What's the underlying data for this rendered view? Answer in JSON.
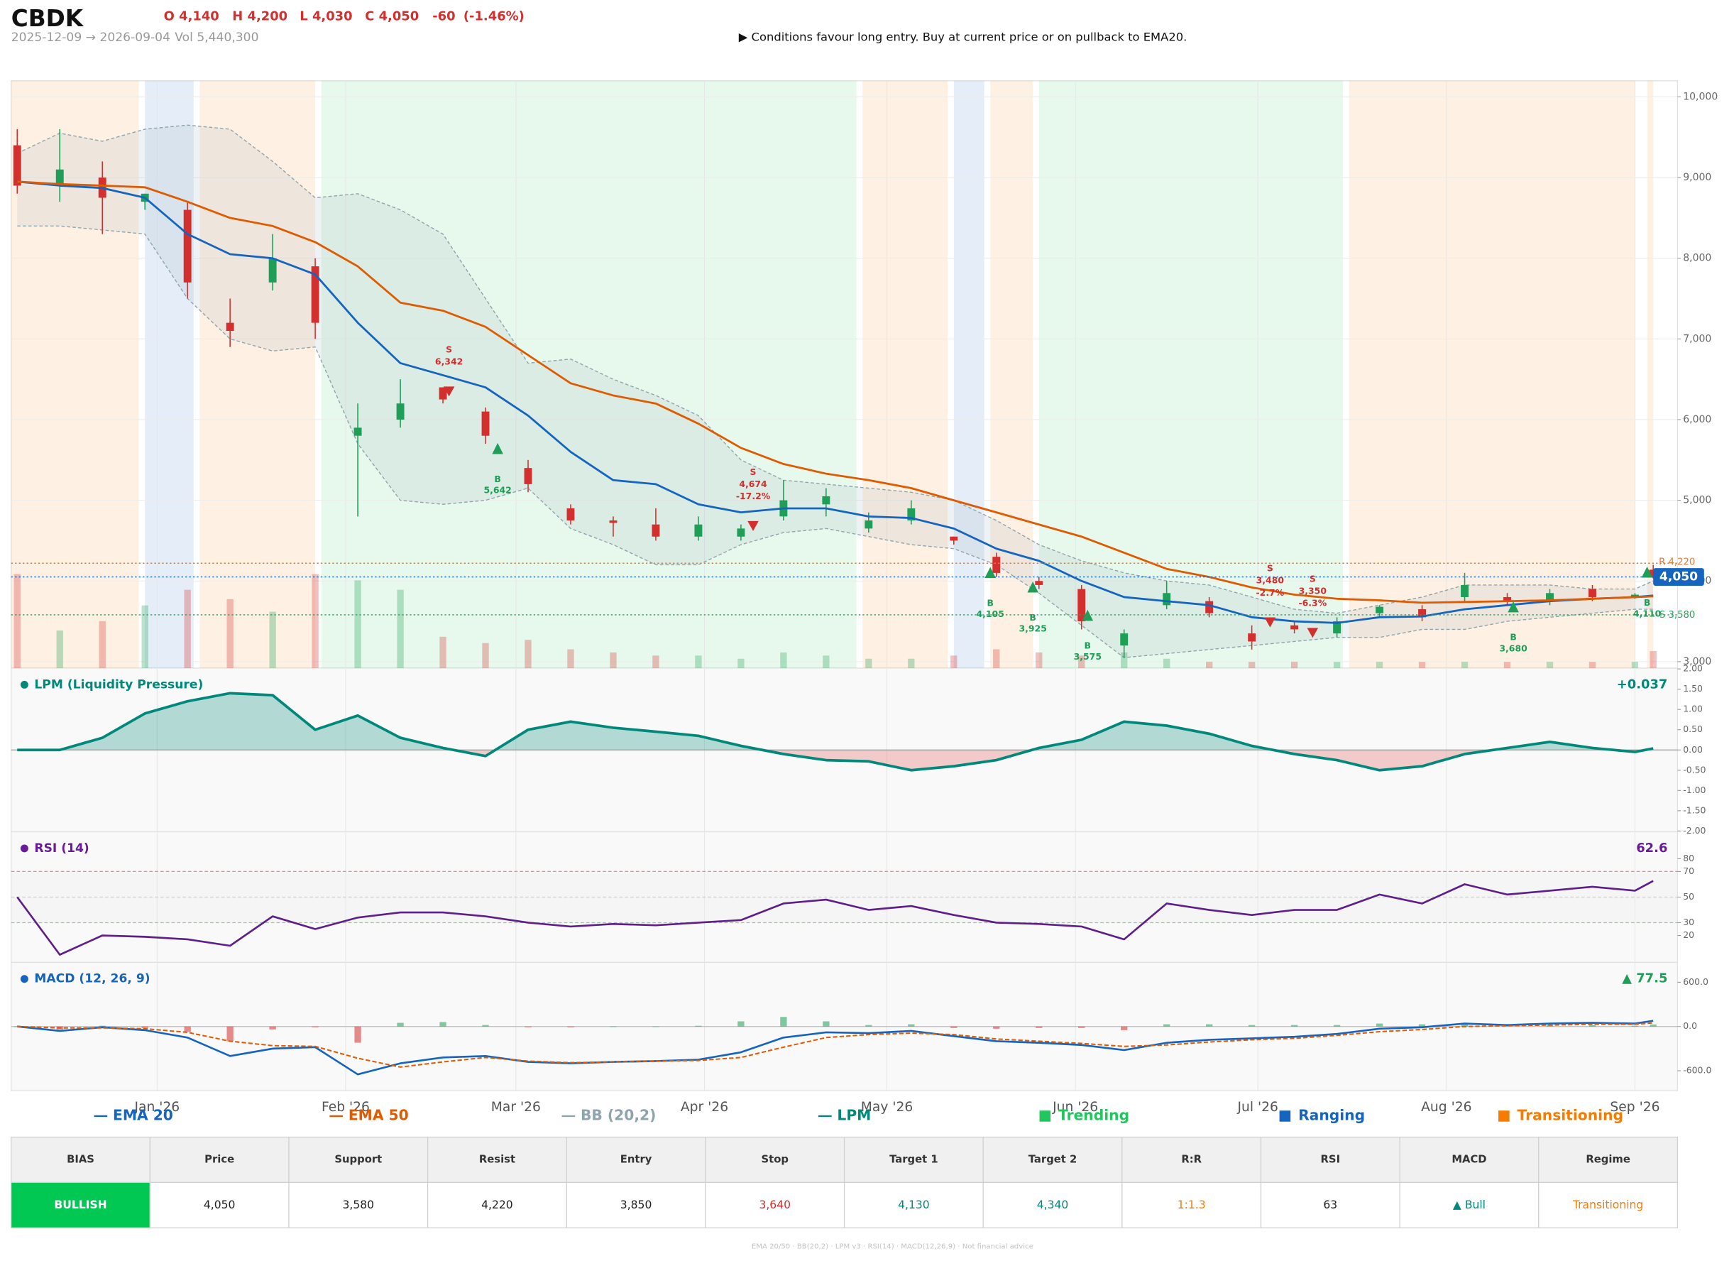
{
  "header": {
    "ticker": "CBDK",
    "ohlc": [
      "O 4,140",
      "H 4,200",
      "L 4,030",
      "C 4,050"
    ],
    "change": "-60",
    "change_pct": "(-1.46%)",
    "range": "2025-12-09 → 2026-09-04",
    "volume": "Vol 5,440,300",
    "message": "▶  Conditions favour long entry. Buy at current price or on pullback to EMA20."
  },
  "chart_data": [
    {
      "type": "candlestick",
      "x": [
        "2025-12-09",
        "2025-12-16",
        "2025-12-23",
        "2025-12-30",
        "2026-01-06",
        "2026-01-13",
        "2026-01-20",
        "2026-01-27",
        "2026-02-03",
        "2026-02-10",
        "2026-02-17",
        "2026-02-24",
        "2026-03-03",
        "2026-03-10",
        "2026-03-17",
        "2026-03-24",
        "2026-03-31",
        "2026-04-07",
        "2026-04-14",
        "2026-04-21",
        "2026-04-28",
        "2026-05-05",
        "2026-05-12",
        "2026-05-19",
        "2026-05-26",
        "2026-06-02",
        "2026-06-09",
        "2026-06-16",
        "2026-06-23",
        "2026-06-30",
        "2026-07-07",
        "2026-07-14",
        "2026-07-21",
        "2026-07-28",
        "2026-08-04",
        "2026-08-11",
        "2026-08-18",
        "2026-08-25",
        "2026-09-01",
        "2026-09-04"
      ],
      "open": [
        9400,
        8900,
        9000,
        8700,
        8600,
        7200,
        7700,
        7900,
        5800,
        6000,
        6400,
        6100,
        5400,
        4900,
        4750,
        4700,
        4550,
        4550,
        4800,
        4950,
        4650,
        4750,
        4550,
        4300,
        4000,
        3900,
        3200,
        3700,
        3750,
        3350,
        3450,
        3350,
        3600,
        3650,
        3800,
        3800,
        3750,
        3900,
        3800,
        4140
      ],
      "high": [
        9600,
        9600,
        9200,
        8800,
        8700,
        7500,
        8300,
        8000,
        6200,
        6500,
        6400,
        6150,
        5500,
        4950,
        4800,
        4900,
        4800,
        4700,
        5250,
        5150,
        4850,
        5000,
        4550,
        4350,
        4050,
        3950,
        3400,
        4000,
        3800,
        3450,
        3500,
        3550,
        3700,
        3700,
        4100,
        3850,
        3900,
        3950,
        3850,
        4200
      ],
      "low": [
        8800,
        8700,
        8300,
        8600,
        7500,
        6900,
        7600,
        7000,
        4800,
        5900,
        6200,
        5700,
        5100,
        4700,
        4550,
        4500,
        4500,
        4500,
        4750,
        4800,
        4600,
        4700,
        4450,
        4050,
        3900,
        3400,
        3050,
        3650,
        3550,
        3150,
        3350,
        3300,
        3550,
        3500,
        3750,
        3700,
        3700,
        3750,
        3780,
        4030
      ],
      "close": [
        8900,
        9100,
        8750,
        8800,
        7700,
        7100,
        8000,
        7200,
        5900,
        6200,
        6250,
        5800,
        5200,
        4750,
        4720,
        4550,
        4700,
        4650,
        5000,
        5050,
        4750,
        4900,
        4500,
        4100,
        3950,
        3500,
        3350,
        3850,
        3600,
        3250,
        3400,
        3500,
        3680,
        3550,
        3950,
        3740,
        3850,
        3800,
        3830,
        4050
      ],
      "volume": [
        30000000,
        12000000,
        15000000,
        20000000,
        25000000,
        22000000,
        18000000,
        30000000,
        28000000,
        25000000,
        10000000,
        8000000,
        9000000,
        6000000,
        5000000,
        4000000,
        4000000,
        3000000,
        5000000,
        4000000,
        3000000,
        3000000,
        4000000,
        6000000,
        5000000,
        4000000,
        5000000,
        3000000,
        2000000,
        2000000,
        2000000,
        2000000,
        2000000,
        2000000,
        2000000,
        2000000,
        2000000,
        2000000,
        2000000,
        5440300
      ],
      "up_color": "#1e9e57",
      "down_color": "#d32f2f",
      "series": [
        {
          "name": "EMA 20",
          "color": "#1565c0",
          "values": [
            8950,
            8900,
            8870,
            8750,
            8300,
            8050,
            8000,
            7800,
            7200,
            6700,
            6550,
            6400,
            6050,
            5600,
            5250,
            5200,
            4950,
            4850,
            4900,
            4900,
            4800,
            4780,
            4650,
            4400,
            4250,
            4000,
            3800,
            3750,
            3700,
            3550,
            3500,
            3480,
            3550,
            3560,
            3650,
            3700,
            3750,
            3780,
            3800,
            3820
          ]
        },
        {
          "name": "EMA 50",
          "color": "#e05a00",
          "values": [
            8950,
            8920,
            8900,
            8880,
            8700,
            8500,
            8400,
            8200,
            7900,
            7450,
            7350,
            7150,
            6800,
            6450,
            6300,
            6200,
            5950,
            5650,
            5450,
            5330,
            5250,
            5150,
            5000,
            4850,
            4700,
            4550,
            4350,
            4150,
            4050,
            3920,
            3830,
            3780,
            3760,
            3730,
            3740,
            3750,
            3760,
            3780,
            3800,
            3810
          ]
        }
      ],
      "bands": [
        {
          "name": "BB (20,2)",
          "color": "#90a4ae",
          "upper": [
            9300,
            9550,
            9450,
            9600,
            9650,
            9600,
            9200,
            8750,
            8800,
            8600,
            8300,
            7500,
            6700,
            6750,
            6500,
            6300,
            6050,
            5500,
            5250,
            5200,
            5150,
            5100,
            5000,
            4750,
            4450,
            4250,
            4100,
            4000,
            3950,
            3800,
            3650,
            3600,
            3700,
            3800,
            3950,
            3950,
            3950,
            3900,
            3900,
            4000
          ],
          "lower": [
            8400,
            8400,
            8350,
            8300,
            7500,
            7000,
            6850,
            6900,
            5700,
            5000,
            4950,
            5000,
            5150,
            4650,
            4450,
            4200,
            4200,
            4450,
            4600,
            4650,
            4550,
            4450,
            4400,
            4200,
            3850,
            3450,
            3050,
            3100,
            3150,
            3200,
            3250,
            3300,
            3300,
            3400,
            3400,
            3500,
            3550,
            3600,
            3650,
            3650
          ]
        }
      ],
      "regime_types": [
        {
          "name": "Trending",
          "color": "#22c55e"
        },
        {
          "name": "Ranging",
          "color": "#1565c0"
        },
        {
          "name": "Transitioning",
          "color": "#f57c00"
        }
      ],
      "regimes": [
        {
          "start": "2025-12-08",
          "end": "2025-12-29",
          "regime": 2
        },
        {
          "start": "2025-12-30",
          "end": "2026-01-07",
          "regime": 1
        },
        {
          "start": "2026-01-08",
          "end": "2026-01-27",
          "regime": 2
        },
        {
          "start": "2026-01-28",
          "end": "2026-04-26",
          "regime": 0
        },
        {
          "start": "2026-04-27",
          "end": "2026-05-11",
          "regime": 2
        },
        {
          "start": "2026-05-12",
          "end": "2026-05-17",
          "regime": 1
        },
        {
          "start": "2026-05-18",
          "end": "2026-05-25",
          "regime": 2
        },
        {
          "start": "2026-05-26",
          "end": "2026-07-15",
          "regime": 0
        },
        {
          "start": "2026-07-16",
          "end": "2026-09-01",
          "regime": 2
        },
        {
          "start": "2026-09-03",
          "end": "2026-09-04",
          "regime": 2
        }
      ],
      "signals": [
        {
          "x": "2026-02-18",
          "side": "S",
          "value": 6342,
          "label": "6,342"
        },
        {
          "x": "2026-02-26",
          "side": "B",
          "value": 5642,
          "label": "5,642"
        },
        {
          "x": "2026-04-09",
          "side": "S",
          "value": 4674,
          "label": "4,674",
          "change": "-17.2%"
        },
        {
          "x": "2026-05-18",
          "side": "B",
          "value": 4105,
          "label": "4,105"
        },
        {
          "x": "2026-05-25",
          "side": "B",
          "value": 3925,
          "label": "3,925"
        },
        {
          "x": "2026-06-03",
          "side": "B",
          "value": 3575,
          "label": "3,575"
        },
        {
          "x": "2026-07-03",
          "side": "S",
          "value": 3480,
          "label": "3,480",
          "change": "-2.7%"
        },
        {
          "x": "2026-07-10",
          "side": "S",
          "value": 3350,
          "label": "3,350",
          "change": "-6.3%"
        },
        {
          "x": "2026-08-12",
          "side": "B",
          "value": 3680,
          "label": "3,680"
        },
        {
          "x": "2026-09-03",
          "side": "B",
          "value": 4110,
          "label": "4,110"
        }
      ],
      "levels": [
        {
          "kind": "resistance",
          "value": 4220,
          "label": "R 4,220",
          "color": "#e07b39"
        },
        {
          "kind": "support",
          "value": 3580,
          "label": "S 3,580",
          "color": "#2e9e5b"
        },
        {
          "kind": "price",
          "value": 4050,
          "label": "4,050",
          "color": "#1565c0"
        }
      ],
      "xlim": [
        "2025-12-08",
        "2026-09-08"
      ],
      "xticks": [
        {
          "value": "2026-01-01",
          "label": "Jan '26"
        },
        {
          "value": "2026-02-01",
          "label": "Feb '26"
        },
        {
          "value": "2026-03-01",
          "label": "Mar '26"
        },
        {
          "value": "2026-04-01",
          "label": "Apr '26"
        },
        {
          "value": "2026-05-01",
          "label": "May '26"
        },
        {
          "value": "2026-06-01",
          "label": "Jun '26"
        },
        {
          "value": "2026-07-01",
          "label": "Jul '26"
        },
        {
          "value": "2026-08-01",
          "label": "Aug '26"
        },
        {
          "value": "2026-09-01",
          "label": "Sep '26"
        }
      ],
      "ylim": [
        2920,
        10200
      ],
      "yticks": [
        {
          "value": 3000,
          "label": "3,000"
        },
        {
          "value": 4000,
          "label": "4,000"
        },
        {
          "value": 5000,
          "label": "5,000"
        },
        {
          "value": 6000,
          "label": "6,000"
        },
        {
          "value": 7000,
          "label": "7,000"
        },
        {
          "value": 8000,
          "label": "8,000"
        },
        {
          "value": 9000,
          "label": "9,000"
        },
        {
          "value": 10000,
          "label": "10,000"
        }
      ],
      "grid": true
    },
    {
      "type": "area",
      "title": "LPM (Liquidity Pressure)",
      "series": [
        {
          "name": "LPM",
          "color": "#00897b",
          "negative_color": "#e57373",
          "values": [
            0,
            0,
            0.3,
            0.9,
            1.2,
            1.4,
            1.35,
            0.5,
            0.85,
            0.3,
            0.05,
            -0.15,
            0.5,
            0.7,
            0.55,
            0.45,
            0.35,
            0.1,
            -0.1,
            -0.25,
            -0.28,
            -0.5,
            -0.4,
            -0.25,
            0.05,
            0.25,
            0.7,
            0.6,
            0.4,
            0.1,
            -0.1,
            -0.25,
            -0.5,
            -0.4,
            -0.1,
            0.05,
            0.2,
            0.05,
            -0.05,
            0.037
          ]
        }
      ],
      "last_label": "+0.037",
      "ylim": [
        -2.02,
        2.02
      ],
      "yticks": [
        {
          "value": 2,
          "label": "2.00"
        },
        {
          "value": 1.5,
          "label": "1.50"
        },
        {
          "value": 1,
          "label": "1.00"
        },
        {
          "value": 0.5,
          "label": "0.50"
        },
        {
          "value": 0,
          "label": "0.00"
        },
        {
          "value": -0.5,
          "label": "-0.50"
        },
        {
          "value": -1,
          "label": "-1.00"
        },
        {
          "value": -1.5,
          "label": "-1.50"
        },
        {
          "value": -2,
          "label": "-2.00"
        }
      ]
    },
    {
      "type": "line",
      "title": "RSI (14)",
      "series": [
        {
          "color": "#5e1f8a",
          "values": [
            50,
            5,
            20,
            19,
            17,
            12,
            35,
            25,
            34,
            38,
            38,
            35,
            30,
            27,
            29,
            28,
            30,
            32,
            45,
            48,
            40,
            43,
            36,
            30,
            29,
            27,
            17,
            45,
            40,
            36,
            40,
            40,
            52,
            45,
            60,
            52,
            55,
            58,
            55,
            62.6
          ]
        }
      ],
      "last_label": "62.6",
      "reference_lines": [
        {
          "value": 70,
          "color": "#e57373"
        },
        {
          "value": 50,
          "color": "#bdbdbd"
        },
        {
          "value": 30,
          "color": "#81c784"
        }
      ],
      "ylim": [
        -1,
        101
      ],
      "yticks": [
        20,
        30,
        50,
        70,
        80
      ]
    },
    {
      "type": "macd",
      "title": "MACD (12, 26, 9)",
      "series": [
        {
          "color": "#1565c0",
          "values": [
            0,
            -60,
            -10,
            -50,
            -150,
            -400,
            -300,
            -280,
            -650,
            -500,
            -420,
            -400,
            -480,
            -500,
            -480,
            -470,
            -450,
            -350,
            -150,
            -80,
            -90,
            -60,
            -130,
            -200,
            -220,
            -250,
            -320,
            -220,
            -180,
            -160,
            -140,
            -100,
            -30,
            -10,
            40,
            20,
            40,
            50,
            40,
            77.5
          ]
        },
        {
          "color": "#e05a00",
          "dashed": true,
          "values": [
            0,
            -20,
            -20,
            -30,
            -80,
            -200,
            -260,
            -270,
            -430,
            -550,
            -480,
            -420,
            -470,
            -490,
            -480,
            -470,
            -460,
            -420,
            -280,
            -150,
            -110,
            -90,
            -110,
            -170,
            -200,
            -230,
            -270,
            -250,
            -210,
            -180,
            -160,
            -120,
            -70,
            -40,
            0,
            10,
            20,
            30,
            30,
            50
          ]
        }
      ],
      "histogram": [
        0,
        -40,
        10,
        -20,
        -70,
        -200,
        -40,
        -10,
        -220,
        50,
        60,
        20,
        -10,
        -10,
        0,
        0,
        10,
        70,
        130,
        70,
        20,
        30,
        -20,
        -30,
        -20,
        -20,
        -50,
        30,
        30,
        20,
        20,
        20,
        40,
        30,
        40,
        10,
        20,
        20,
        10,
        27.5
      ],
      "last_label": "▲ 77.5",
      "ylim": [
        -870,
        870
      ],
      "yticks": [
        {
          "value": 600,
          "label": "600.0"
        },
        {
          "value": 0,
          "label": "0.0"
        },
        {
          "value": -600,
          "label": "-600.0"
        }
      ]
    }
  ],
  "table": {
    "headers": [
      "BIAS",
      "Price",
      "Support",
      "Resist",
      "Entry",
      "Stop",
      "Target 1",
      "Target 2",
      "R:R",
      "RSI",
      "MACD",
      "Regime"
    ],
    "rows": [
      [
        "BULLISH",
        "4,050",
        "3,580",
        "4,220",
        "3,850",
        "3,640",
        "4,130",
        "4,340",
        "1:1.3",
        "63",
        "▲ Bull",
        "Transitioning"
      ]
    ]
  },
  "footer": "EMA 20/50  ·  BB(20,2)  ·  LPM v3  ·  RSI(14)  ·  MACD(12,26,9)  ·  Not financial advice"
}
